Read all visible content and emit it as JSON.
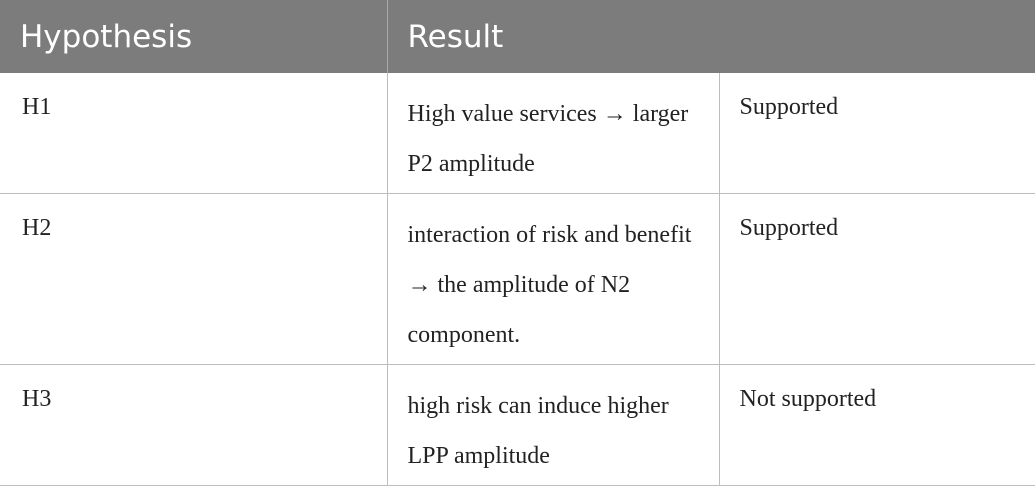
{
  "table": {
    "headers": {
      "hypothesis": "Hypothesis",
      "result": "Result"
    },
    "rows": [
      {
        "hypothesis": "H1",
        "description": "High value services → larger P2 amplitude",
        "result": "Supported"
      },
      {
        "hypothesis": "H2",
        "description": "interaction of risk and benefit → the amplitude of N2 component.",
        "result": "Supported"
      },
      {
        "hypothesis": "H3",
        "description": "high risk can induce higher LPP amplitude",
        "result": "Not supported"
      }
    ],
    "colors": {
      "header_bg": "#7b7c7b",
      "header_text": "#ffffff",
      "border": "#bdbdbd"
    }
  }
}
